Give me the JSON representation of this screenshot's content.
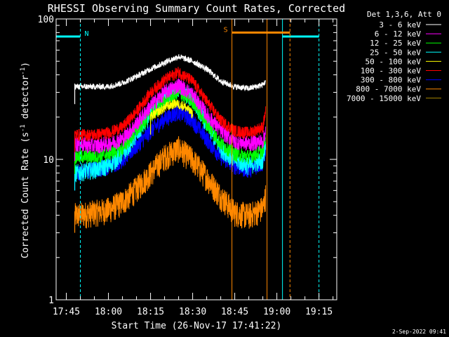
{
  "chart_data": {
    "type": "line",
    "title": "RHESSI Observing Summary Count Rates, Corrected",
    "xlabel": "Start Time (26-Nov-17 17:41:22)",
    "ylabel": "Corrected Count Rate (s⁻¹ detector⁻¹)",
    "ylabel_parts": {
      "main": "Corrected Count Rate (s",
      "exp1": "-1",
      "mid": " detector",
      "exp2": "-1",
      "end": ")"
    },
    "yscale": "log",
    "ylim": [
      1,
      100
    ],
    "xlim": [
      "17:41:22",
      "19:21:20"
    ],
    "x_ticks": [
      "17:45",
      "18:00",
      "18:15",
      "18:30",
      "18:45",
      "19:00",
      "19:15"
    ],
    "y_ticks": [
      "1",
      "10",
      "100"
    ],
    "legend": {
      "header": "Det 1,3,6, Att 0",
      "placement": "top-right-outside",
      "entries": [
        {
          "label": "3 - 6 keV",
          "color": "#ffffff"
        },
        {
          "label": "6 - 12 keV",
          "color": "#ff00ff"
        },
        {
          "label": "12 - 25 keV",
          "color": "#00ff00"
        },
        {
          "label": "25 - 50 keV",
          "color": "#00ffff"
        },
        {
          "label": "50 - 100 keV",
          "color": "#ffff00"
        },
        {
          "label": "100 - 300 keV",
          "color": "#ff0000"
        },
        {
          "label": "300 - 800 keV",
          "color": "#0000ff"
        },
        {
          "label": "800 - 7000 keV",
          "color": "#ff8800"
        },
        {
          "label": "7000 - 15000 keV",
          "color": "#aa8800"
        }
      ]
    },
    "data_window": {
      "start": "17:47:30",
      "end": "18:56:30"
    },
    "series": [
      {
        "name": "3 - 6 keV",
        "color": "#ffffff",
        "x": [
          "17:48",
          "17:55",
          "18:00",
          "18:05",
          "18:10",
          "18:15",
          "18:20",
          "18:25",
          "18:30",
          "18:35",
          "18:40",
          "18:45",
          "18:50",
          "18:55",
          "18:56"
        ],
        "y": [
          33,
          33,
          33,
          35,
          39,
          44,
          49,
          54,
          50,
          44,
          36,
          33,
          32,
          34,
          36
        ]
      },
      {
        "name": "6 - 12 keV",
        "color": "#ff00ff",
        "x": [
          "17:48",
          "17:55",
          "18:00",
          "18:05",
          "18:10",
          "18:15",
          "18:20",
          "18:25",
          "18:30",
          "18:35",
          "18:40",
          "18:45",
          "18:50",
          "18:55",
          "18:56"
        ],
        "y": [
          13,
          12.5,
          13,
          14,
          18,
          24,
          30,
          34,
          29,
          21,
          16,
          13.5,
          13,
          13.5,
          16
        ]
      },
      {
        "name": "12 - 25 keV",
        "color": "#00ff00",
        "x": [
          "17:48",
          "17:55",
          "18:00",
          "18:05",
          "18:10",
          "18:15",
          "18:20",
          "18:25",
          "18:30",
          "18:35",
          "18:40",
          "18:45",
          "18:50",
          "18:55",
          "18:56"
        ],
        "y": [
          10.5,
          10.5,
          11,
          12,
          16,
          21,
          26,
          30,
          26,
          18,
          13,
          11,
          10.5,
          11.5,
          15
        ]
      },
      {
        "name": "25 - 50 keV",
        "color": "#00ffff",
        "x": [
          "17:48",
          "17:55",
          "18:00",
          "18:05",
          "18:10",
          "18:15",
          "18:20",
          "18:25",
          "18:30",
          "18:35",
          "18:40",
          "18:45",
          "18:50",
          "18:55",
          "18:56"
        ],
        "y": [
          8,
          8.5,
          9,
          11,
          15,
          21,
          28,
          32,
          27,
          18,
          12,
          10,
          9,
          10,
          13
        ]
      },
      {
        "name": "50 - 100 keV",
        "color": "#ffff00",
        "x": [
          "18:15",
          "18:18",
          "18:21",
          "18:24",
          "18:27",
          "18:30"
        ],
        "y": [
          20,
          22,
          24,
          25,
          24,
          21
        ]
      },
      {
        "name": "100 - 300 keV",
        "color": "#ff0000",
        "x": [
          "17:48",
          "17:55",
          "18:00",
          "18:05",
          "18:10",
          "18:15",
          "18:20",
          "18:25",
          "18:30",
          "18:35",
          "18:40",
          "18:45",
          "18:50",
          "18:55",
          "18:56"
        ],
        "y": [
          15,
          15,
          15.5,
          17,
          22,
          30,
          37,
          42,
          36,
          26,
          19,
          16,
          15.5,
          17,
          22
        ]
      },
      {
        "name": "300 - 800 keV",
        "color": "#0000ff",
        "x": [
          "17:48",
          "17:55",
          "18:00",
          "18:05",
          "18:10",
          "18:15",
          "18:20",
          "18:25",
          "18:30",
          "18:35",
          "18:40",
          "18:45",
          "18:50",
          "18:55",
          "18:56"
        ],
        "y": [
          8,
          8.5,
          9,
          10,
          12.5,
          16,
          19.5,
          22,
          19,
          14,
          10.5,
          9,
          8.5,
          9.5,
          12
        ]
      },
      {
        "name": "800 - 7000 keV",
        "color": "#ff8800",
        "x": [
          "17:48",
          "17:55",
          "18:00",
          "18:05",
          "18:10",
          "18:15",
          "18:20",
          "18:25",
          "18:30",
          "18:35",
          "18:40",
          "18:45",
          "18:50",
          "18:55",
          "18:56"
        ],
        "y": [
          4,
          4.2,
          4.4,
          5,
          6.2,
          8,
          10.5,
          12,
          10,
          7.5,
          5.5,
          4.2,
          4,
          4.5,
          5.5
        ]
      }
    ],
    "markers": [
      {
        "label": "N",
        "color": "#00ffff",
        "level": 75,
        "bar_start": "17:41:22",
        "bar_end": "17:50:00",
        "bar2_start": "19:02:00",
        "bar2_end": "19:15:00",
        "solid_at": [
          "17:41:22",
          "19:02:00"
        ],
        "dashed_at": [
          "17:50:00",
          "19:15:00"
        ]
      },
      {
        "label": "S",
        "color": "#ff8800",
        "level": 80,
        "bar_start": "18:44:00",
        "bar_end": "19:04:40",
        "solid_at": [
          "18:44:00",
          "18:56:30"
        ],
        "dashed_at": [
          "19:04:40"
        ]
      }
    ]
  },
  "footer": {
    "timestamp": "2-Sep-2022 09:41"
  }
}
